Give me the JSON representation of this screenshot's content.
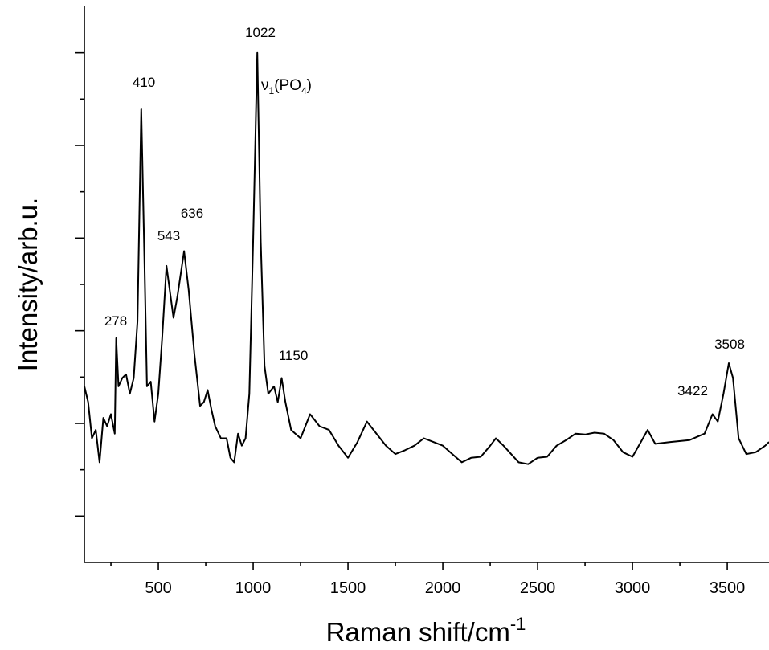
{
  "chart_data": {
    "type": "line",
    "x_label": "Raman shift/cm",
    "x_label_sup": "-1",
    "y_label": "Intensity/arb.u.",
    "xlim": [
      110,
      3720
    ],
    "ylim": [
      0,
      6
    ],
    "xticks": [
      500,
      1000,
      1500,
      2000,
      2500,
      3000,
      3500
    ],
    "xminor_ticks": [
      250,
      750,
      1250,
      1750,
      2250,
      2750,
      3250
    ],
    "yticks": [
      0.5,
      1.5,
      2.5,
      3.5,
      4.5,
      5.5
    ],
    "yminor_ticks": [
      1,
      2,
      3,
      4,
      5
    ],
    "ytick_labels": false,
    "grid": false,
    "series": [
      {
        "color": "#000000",
        "x": [
          110,
          130,
          150,
          170,
          190,
          210,
          230,
          250,
          270,
          278,
          290,
          310,
          330,
          350,
          370,
          390,
          410,
          425,
          440,
          460,
          480,
          500,
          520,
          543,
          560,
          580,
          600,
          636,
          660,
          690,
          720,
          740,
          760,
          780,
          800,
          830,
          860,
          880,
          900,
          920,
          940,
          960,
          980,
          1000,
          1022,
          1040,
          1060,
          1080,
          1110,
          1130,
          1150,
          1170,
          1200,
          1250,
          1300,
          1350,
          1400,
          1450,
          1500,
          1550,
          1600,
          1650,
          1700,
          1750,
          1800,
          1850,
          1900,
          1950,
          2000,
          2050,
          2100,
          2150,
          2200,
          2250,
          2280,
          2320,
          2400,
          2450,
          2500,
          2550,
          2600,
          2650,
          2700,
          2750,
          2800,
          2850,
          2900,
          2950,
          3000,
          3050,
          3080,
          3120,
          3200,
          3300,
          3380,
          3422,
          3450,
          3480,
          3508,
          3530,
          3560,
          3600,
          3650,
          3700,
          3720
        ],
        "values": [
          1.9,
          1.73,
          1.34,
          1.43,
          1.08,
          1.56,
          1.47,
          1.6,
          1.39,
          2.42,
          1.9,
          1.99,
          2.03,
          1.82,
          1.99,
          2.6,
          4.89,
          3.46,
          1.9,
          1.95,
          1.52,
          1.82,
          2.42,
          3.2,
          2.94,
          2.64,
          2.86,
          3.36,
          2.94,
          2.25,
          1.69,
          1.73,
          1.86,
          1.65,
          1.47,
          1.34,
          1.34,
          1.13,
          1.08,
          1.39,
          1.26,
          1.34,
          1.82,
          3.46,
          5.5,
          3.46,
          2.12,
          1.82,
          1.9,
          1.73,
          1.99,
          1.73,
          1.43,
          1.34,
          1.6,
          1.47,
          1.43,
          1.26,
          1.13,
          1.3,
          1.52,
          1.39,
          1.26,
          1.17,
          1.21,
          1.26,
          1.34,
          1.3,
          1.26,
          1.17,
          1.08,
          1.13,
          1.14,
          1.26,
          1.34,
          1.26,
          1.08,
          1.06,
          1.13,
          1.14,
          1.26,
          1.32,
          1.39,
          1.38,
          1.4,
          1.39,
          1.32,
          1.19,
          1.14,
          1.32,
          1.43,
          1.28,
          1.3,
          1.32,
          1.39,
          1.6,
          1.52,
          1.82,
          2.15,
          1.99,
          1.34,
          1.17,
          1.19,
          1.26,
          1.3
        ]
      }
    ],
    "annotations": [
      {
        "text": "278"
      },
      {
        "text": "410"
      },
      {
        "text": "543"
      },
      {
        "text": "636"
      },
      {
        "text": "1022"
      },
      {
        "text": "1150"
      },
      {
        "text": "3422"
      },
      {
        "text": "3508"
      },
      {
        "text": [
          "ν",
          "1",
          "(PO",
          "4",
          ")"
        ]
      }
    ]
  }
}
